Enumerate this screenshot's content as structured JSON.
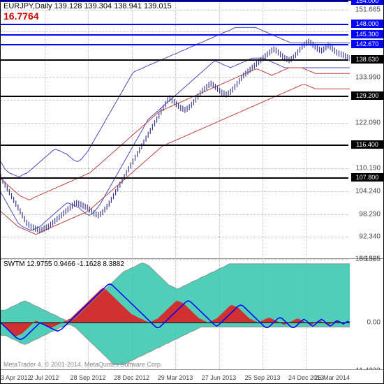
{
  "header": {
    "symbol": "EURJPY,Daily",
    "ohlc": "139.128 139.304 138.941 139.015",
    "value": "16.7764"
  },
  "indicator": {
    "name": "SWTM",
    "values": "12.9755 0.9466 -1.1628 8.3882"
  },
  "copyright": "MetaTrader 4, © 2001-2014, MetaQuotes Software Corp.",
  "price_chart": {
    "ylim": [
      86.565,
      154.0
    ],
    "yticks": [
      86.565,
      92.34,
      98.29,
      104.24,
      110.19,
      116.4,
      122.09,
      128.04,
      133.99,
      138.765,
      145.89,
      151.665
    ],
    "yticklabels": [
      "86.565",
      "92.340",
      "98.290",
      "104.240",
      "110.190",
      "",
      "122.090",
      "",
      "133.990",
      "",
      "",
      "151.665"
    ],
    "horizontal_lines": [
      {
        "value": 154.0,
        "color": "blue",
        "label": "154.000"
      },
      {
        "value": 148.0,
        "color": "blue",
        "label": "148.000"
      },
      {
        "value": 145.3,
        "color": "blue",
        "label": "145.300"
      },
      {
        "value": 142.67,
        "color": "blue",
        "label": "142.670"
      },
      {
        "value": 138.63,
        "color": "black",
        "label": "138.630"
      },
      {
        "value": 129.2,
        "color": "black",
        "label": "129.200"
      },
      {
        "value": 116.4,
        "color": "black",
        "label": "116.400"
      },
      {
        "value": 107.8,
        "color": "black",
        "label": "107.800"
      }
    ],
    "price_series": [
      108,
      107,
      106,
      105,
      104,
      103,
      102,
      101,
      100,
      99,
      98,
      97,
      96,
      95.5,
      95,
      94.8,
      94.5,
      94.3,
      94,
      94.2,
      94.5,
      94.8,
      95,
      95.5,
      96,
      96.5,
      97,
      97.5,
      98,
      98.5,
      99,
      99.5,
      100,
      100.5,
      101,
      101.2,
      101,
      100.8,
      100.5,
      100.2,
      100,
      99.5,
      99,
      98.5,
      98.2,
      98,
      98.3,
      98.8,
      99.5,
      100.2,
      101,
      102,
      103,
      104,
      105,
      106,
      107,
      108,
      109,
      110,
      111,
      112,
      113,
      114,
      115,
      116,
      117,
      118,
      119,
      120,
      121,
      122,
      123,
      124,
      125,
      126,
      127,
      128,
      128.5,
      128,
      127.5,
      127,
      126.5,
      126,
      125.8,
      125.5,
      125.8,
      126.2,
      126.8,
      127.5,
      128.2,
      129,
      129.8,
      130.5,
      131,
      131.5,
      132,
      132.3,
      132,
      131.5,
      131,
      130.5,
      130,
      129.8,
      129.5,
      129.8,
      130.2,
      130.8,
      131.5,
      132.2,
      133,
      133.8,
      134.5,
      135,
      135.5,
      136,
      136.5,
      137,
      137.5,
      138,
      138.5,
      139,
      139.5,
      140,
      140.5,
      141,
      141.3,
      141,
      140.5,
      140,
      139.5,
      139,
      138.8,
      138.5,
      138.8,
      139.2,
      139.8,
      140.5,
      141.2,
      142,
      142.5,
      143,
      143.3,
      143,
      142.5,
      142,
      141.5,
      141.2,
      141,
      141.3,
      141.8,
      142.3,
      142,
      141.5,
      141,
      140.5,
      140.2,
      140,
      139.8,
      139.5,
      139.2,
      139
    ],
    "channel_upper": [
      112,
      111,
      110,
      109.5,
      109,
      108.8,
      108.5,
      108.3,
      108,
      108.2,
      108.5,
      108.8,
      109,
      109.5,
      110,
      110.5,
      111,
      111.5,
      112,
      112.5,
      113,
      113.5,
      114,
      114.5,
      115,
      115.2,
      115,
      114.8,
      114.5,
      114.2,
      114,
      113.5,
      113,
      112.5,
      112.2,
      112,
      112.3,
      112.8,
      113.5,
      114.2,
      115,
      116,
      117,
      118,
      119,
      120,
      121,
      122,
      123,
      124,
      125,
      126,
      127,
      128,
      129,
      130,
      131,
      132,
      133,
      134,
      135,
      135.5,
      135.8,
      136,
      136.2,
      136.5,
      136.8,
      137,
      137.3,
      137.5,
      137.8,
      138,
      138.3,
      138.5,
      138.8,
      139,
      139.3,
      139.5,
      139.8,
      140,
      140.2,
      140.5,
      140.8,
      141,
      141.2,
      141.5,
      141.8,
      142,
      142.2,
      142.5,
      142.8,
      143,
      143.2,
      143.5,
      143.8,
      144,
      144.2,
      144.5,
      144.8,
      145,
      145.2,
      145.5,
      145.8,
      146,
      146.2,
      146.5,
      146.8,
      147,
      147,
      147,
      147,
      147,
      147,
      147,
      147,
      147,
      147,
      146.8,
      146.5,
      146.3,
      146,
      145.8,
      145.5,
      145.3,
      145,
      144.8,
      144.5,
      144.3,
      144,
      143.8,
      143.5,
      143.3,
      143,
      143,
      143,
      143,
      143,
      143,
      143,
      143,
      143,
      143,
      143,
      143,
      143,
      143,
      143,
      143,
      143,
      143,
      143,
      143,
      143,
      143,
      143,
      143,
      143,
      143,
      143,
      143
    ],
    "channel_lower": [
      104,
      103,
      102,
      101,
      100,
      99,
      98,
      97,
      96,
      95.5,
      95,
      94.8,
      94.5,
      94.3,
      94,
      94.2,
      94.5,
      94.8,
      95,
      95.5,
      96,
      96.5,
      97,
      97.5,
      98,
      98.5,
      99,
      99.5,
      100,
      100.5,
      101,
      101.2,
      101,
      100.8,
      100.5,
      100.2,
      100,
      99.5,
      99,
      98.5,
      98.2,
      98,
      98.3,
      98.8,
      99.5,
      100.2,
      101,
      102,
      103,
      104,
      105,
      106,
      107,
      108,
      109,
      110,
      111,
      112,
      113,
      114,
      115,
      116,
      117,
      118,
      119,
      120,
      121,
      122,
      123,
      123.5,
      124,
      124.5,
      125,
      125.5,
      126,
      126.5,
      127,
      127.5,
      128,
      128.5,
      129,
      129.5,
      130,
      130.5,
      131,
      131.5,
      132,
      132.5,
      133,
      133.5,
      134,
      134.5,
      135,
      135.5,
      136,
      136.5,
      137,
      137.5,
      138,
      138.2,
      138,
      137.8,
      137.5,
      137.2,
      137,
      136.8,
      136.5,
      136.8,
      137,
      137.3,
      137.5,
      137.8,
      138,
      138.2,
      138.5,
      138.8,
      139,
      139,
      139,
      139,
      139,
      139,
      138.8,
      138.5,
      138.3,
      138,
      137.8,
      137.5,
      137.3,
      137,
      136.8,
      136.5,
      136.5,
      136.5,
      136.5,
      136.5,
      136.5,
      136.5,
      136.5,
      136.5,
      136.5,
      136.5,
      136.5,
      136.5,
      136.5,
      136.5,
      136.5,
      136.5,
      136.5,
      136.5,
      136.5,
      136.5,
      136.5,
      136.5,
      136.5,
      136.5,
      136.5,
      136.5,
      136.5,
      136.5,
      136.5,
      136.5
    ],
    "ma_red_upper": [
      107.5,
      107,
      106.5,
      106,
      105.5,
      105,
      104.5,
      104,
      103.5,
      103,
      102.8,
      102.5,
      102.3,
      102,
      102.2,
      102.5,
      102.8,
      103,
      103.3,
      103.5,
      103.8,
      104,
      104.3,
      104.5,
      104.8,
      105,
      105.3,
      105.5,
      105.8,
      106,
      106.3,
      106.5,
      106.8,
      107,
      107.3,
      107.5,
      107.8,
      108,
      108.3,
      108.5,
      108.8,
      109,
      109.5,
      110,
      110.5,
      111,
      111.5,
      112,
      112.5,
      113,
      113.5,
      114,
      114.5,
      115,
      115.5,
      116,
      116.5,
      117,
      117.5,
      118,
      118.5,
      119,
      119.5,
      120,
      120.5,
      121,
      121.5,
      122,
      122.5,
      123,
      123.5,
      124,
      124.5,
      125,
      125.3,
      125.5,
      125.8,
      126,
      126.3,
      126.5,
      126.8,
      127,
      127.3,
      127.5,
      127.8,
      128,
      128.3,
      128.5,
      128.8,
      129,
      129.3,
      129.5,
      129.8,
      130,
      130.3,
      130.5,
      130.8,
      131,
      131.3,
      131.5,
      131.8,
      132,
      132.3,
      132.5,
      132.8,
      133,
      133.3,
      133.5,
      133.8,
      134,
      134.3,
      134.5,
      134.8,
      135,
      135.3,
      135.5,
      135.8,
      136,
      136.2,
      136,
      135.8,
      135.5,
      135.3,
      135,
      134.8,
      134.5,
      134.8,
      135,
      135.2,
      135.5,
      135.8,
      136,
      136.2,
      136.5,
      136.5,
      136.5,
      136.5,
      136.5,
      136.5,
      136.5,
      136.2,
      136,
      135.8,
      135.5,
      135.3,
      135,
      135,
      135,
      135,
      135,
      135,
      135,
      135,
      135,
      135,
      135,
      135,
      135,
      135,
      135,
      135,
      135
    ],
    "ma_red_lower": [
      99,
      98.5,
      98,
      97.5,
      97,
      96.5,
      96,
      95.5,
      95,
      94.8,
      94.5,
      94.3,
      94,
      93.8,
      93.5,
      93.3,
      93,
      93.2,
      93.5,
      93.8,
      94,
      94.3,
      94.5,
      94.8,
      95,
      95.3,
      95.5,
      95.8,
      96,
      96.3,
      96.5,
      96.8,
      97,
      97.3,
      97.5,
      97.8,
      98,
      98.3,
      98.5,
      98.8,
      99,
      99.5,
      100,
      100.5,
      101,
      101.5,
      102,
      102.5,
      103,
      103.5,
      104,
      104.5,
      105,
      105.5,
      106,
      106.5,
      107,
      107.5,
      108,
      108.5,
      109,
      109.5,
      110,
      110.5,
      111,
      111.5,
      112,
      112.5,
      113,
      113.5,
      114,
      114.5,
      115,
      115.5,
      116,
      116.3,
      116.5,
      116.8,
      117,
      117.3,
      117.5,
      117.8,
      118,
      118.3,
      118.5,
      118.8,
      119,
      119.3,
      119.5,
      119.8,
      120,
      120.3,
      120.5,
      120.8,
      121,
      121.3,
      121.5,
      121.8,
      122,
      122.3,
      122.5,
      122.8,
      123,
      123.3,
      123.5,
      123.8,
      124,
      124.3,
      124.5,
      124.8,
      125,
      125.3,
      125.5,
      125.8,
      126,
      126.3,
      126.5,
      126.8,
      127,
      127.3,
      127.5,
      127.8,
      128,
      128.3,
      128.5,
      128.8,
      129,
      129.3,
      129.5,
      129.8,
      130,
      130.3,
      130.5,
      130.8,
      131,
      131.3,
      131.5,
      131.8,
      132,
      132.2,
      132,
      131.8,
      131.5,
      131.3,
      131,
      131,
      131,
      131,
      131,
      131,
      131,
      131,
      131,
      131,
      131,
      131,
      131,
      131,
      131,
      131,
      131
    ],
    "colors": {
      "price": "#3a3a8a",
      "channel": "#4a4ac0",
      "ma_red": "#c04040",
      "grid": "#cccccc",
      "hline_black": "#000000",
      "hline_blue": "#0000ff"
    }
  },
  "indicator_chart": {
    "ylim": [
      -11.4222,
      15.1325
    ],
    "yticks": [
      -11.4222,
      0.0,
      15.1325
    ],
    "yticklabels": [
      "-11.4222",
      "0.00",
      "15.1325"
    ],
    "green_upper": [
      3,
      3,
      3,
      3.2,
      3.5,
      3.8,
      4,
      4.2,
      4.5,
      4.8,
      5,
      5.2,
      5,
      4.8,
      4.5,
      4.2,
      4,
      3.8,
      3.5,
      3.2,
      3,
      2.8,
      2.5,
      2.2,
      2,
      1.8,
      1.5,
      1.2,
      1,
      0.8,
      0.5,
      0.5,
      0.5,
      0.8,
      1,
      1.5,
      2,
      2.5,
      3,
      3.5,
      4,
      4.5,
      5,
      5.5,
      6,
      6.5,
      7,
      7.5,
      8,
      8.5,
      9,
      9.5,
      10,
      10.5,
      11,
      11.5,
      12,
      12.3,
      12.5,
      12.8,
      13,
      13.2,
      13.5,
      13.8,
      14,
      14.2,
      14,
      13.8,
      13.5,
      13,
      12.5,
      12,
      11.5,
      11,
      10.5,
      10,
      9.5,
      9,
      8.8,
      8.5,
      8.3,
      8,
      8.2,
      8.5,
      8.8,
      9,
      9.2,
      9.5,
      9.8,
      10,
      10.2,
      10.5,
      10.8,
      11,
      11.2,
      11.5,
      11.8,
      12,
      12.2,
      12.5,
      12.8,
      13,
      13.2,
      13.5,
      13.8,
      14,
      14,
      14,
      14,
      14,
      14,
      14,
      14,
      14,
      14,
      14,
      14,
      14,
      14,
      14,
      14,
      14,
      14,
      14,
      14,
      14,
      14,
      14,
      14,
      14,
      14,
      14,
      14,
      14,
      14,
      14,
      14,
      14,
      14,
      14,
      14,
      14,
      14,
      14,
      14,
      14,
      14,
      14,
      14,
      14,
      14,
      14,
      14,
      14,
      14,
      14,
      14,
      14,
      14,
      14,
      14
    ],
    "green_lower": [
      -3,
      -3,
      -3,
      -3.2,
      -3.5,
      -3.8,
      -4,
      -4.2,
      -4.5,
      -4.8,
      -5,
      -5.2,
      -5,
      -4.8,
      -4.5,
      -4.2,
      -4,
      -3.8,
      -3.5,
      -3.2,
      -3,
      -2.8,
      -2.5,
      -2.2,
      -2,
      -1.8,
      -1.5,
      -1.2,
      -1,
      -0.8,
      -0.5,
      -0.5,
      -0.5,
      -0.8,
      -1,
      -1.5,
      -2,
      -2.5,
      -3,
      -3.5,
      -4,
      -4.5,
      -5,
      -5.5,
      -6,
      -6.5,
      -7,
      -7.5,
      -8,
      -8.5,
      -9,
      -9.5,
      -10,
      -10,
      -10,
      -10,
      -10,
      -9.8,
      -9.5,
      -9.2,
      -9,
      -8.8,
      -8.5,
      -8.2,
      -8,
      -7.8,
      -7.5,
      -7.2,
      -7,
      -6.8,
      -6.5,
      -6.2,
      -6,
      -5.8,
      -5.5,
      -5.2,
      -5,
      -4.8,
      -4.5,
      -4.2,
      -4,
      -3.8,
      -3.5,
      -3.2,
      -3,
      -2.8,
      -2.5,
      -2.2,
      -2,
      -1.8,
      -1.5,
      -1.2,
      -1,
      -1,
      -1,
      -1,
      -1,
      -1,
      -1,
      -1,
      -1,
      -1,
      -1,
      -1,
      -1,
      -1,
      -1,
      -1,
      -1,
      -1,
      -1,
      -1,
      -1,
      -1,
      -1,
      -1,
      -1,
      -1,
      -1,
      -1,
      -1,
      -1,
      -1,
      -1,
      -1,
      -1,
      -1,
      -1,
      -1,
      -1,
      -1,
      -1,
      -1,
      -1,
      -1,
      -1,
      -1,
      -1,
      -1,
      -1,
      -1,
      -1,
      -1,
      -1,
      -1,
      -1,
      -1,
      -1,
      -1,
      -1,
      -1,
      -1,
      -1,
      -1,
      -1,
      -1,
      -1,
      -1,
      -1,
      -1,
      -1
    ],
    "red_series": [
      0,
      -0.5,
      -1,
      -1.5,
      -2,
      -2.5,
      -3,
      -3.2,
      -3,
      -2.8,
      -2.5,
      -2,
      -1.5,
      -1,
      -0.5,
      0,
      0.5,
      0.3,
      0,
      -0.3,
      -0.5,
      -0.8,
      -1,
      -1.2,
      -1,
      -0.8,
      -0.5,
      -0.3,
      0,
      0.3,
      0.5,
      0.8,
      1,
      1.5,
      2,
      2.5,
      3,
      3.5,
      4,
      4.5,
      5,
      5.5,
      6,
      6.5,
      7,
      7.5,
      8,
      8.3,
      8,
      7.5,
      7,
      6.5,
      6,
      5.5,
      5,
      4.5,
      4,
      3.5,
      3,
      2.5,
      2,
      1.8,
      1.5,
      1.2,
      1,
      0.8,
      0.5,
      0.3,
      0,
      0.3,
      0.5,
      0.8,
      1,
      1.5,
      2,
      2.5,
      3,
      3.5,
      4,
      4.5,
      5,
      5.2,
      5,
      4.8,
      4.5,
      4,
      3.5,
      3,
      2.5,
      2,
      1.5,
      1,
      0.8,
      0.5,
      0.3,
      0,
      0.3,
      0.5,
      0.8,
      1,
      1.5,
      2,
      2.5,
      3,
      3.5,
      4,
      4.2,
      4,
      3.8,
      3.5,
      3,
      2.5,
      2,
      1.5,
      1,
      0.8,
      0.5,
      0.3,
      0,
      0.3,
      0.5,
      0.8,
      1,
      1.2,
      1,
      0.8,
      0.5,
      0.3,
      0,
      -0.3,
      -0.5,
      -0.3,
      0,
      0.3,
      0.5,
      0.8,
      1,
      0.8,
      0.5,
      0.3,
      0,
      -0.3,
      -0.5,
      -0.3,
      0,
      0.3,
      0.5,
      0.3,
      0,
      -0.3,
      -0.5,
      -0.3,
      0,
      0.3,
      0.5,
      0.3,
      0,
      -0.3,
      0,
      0.3,
      0
    ],
    "blue_series": [
      0,
      -0.5,
      -1,
      -1.5,
      -2,
      -2.5,
      -3,
      -3.5,
      -3.8,
      -4,
      -3.8,
      -3.5,
      -3,
      -2.5,
      -2,
      -1.5,
      -1,
      -0.5,
      0,
      -0.3,
      -0.5,
      -0.8,
      -1,
      -1.3,
      -1.5,
      -1.8,
      -2,
      -1.8,
      -1.5,
      -1,
      -0.5,
      0,
      0.5,
      1,
      1.5,
      2,
      2.5,
      3,
      3.5,
      4,
      4.5,
      5,
      5.5,
      6,
      6.5,
      7,
      7.5,
      8,
      8.5,
      9,
      9.2,
      9,
      8.5,
      8,
      7.5,
      7,
      6.5,
      6,
      5.5,
      5,
      4.5,
      4,
      3.5,
      3,
      2.5,
      2,
      1.5,
      1,
      0.5,
      0,
      -0.5,
      -1,
      -1.2,
      -1,
      -0.5,
      0,
      0.5,
      1,
      1.5,
      2,
      2.5,
      3,
      3.5,
      4,
      4.5,
      5,
      5.2,
      5,
      4.5,
      4,
      3.5,
      3,
      2.5,
      2,
      1.5,
      1,
      0.5,
      0,
      -0.5,
      -0.8,
      -0.5,
      0,
      0.5,
      1,
      1.5,
      2,
      2.5,
      3,
      3.5,
      4,
      4.2,
      4,
      3.5,
      3,
      2.5,
      2,
      1.5,
      1,
      0.5,
      0,
      -0.5,
      -1,
      -1.2,
      -1,
      -0.5,
      0,
      0.5,
      1,
      1.2,
      1,
      0.5,
      0,
      -0.5,
      -1,
      -1.2,
      -1,
      -0.5,
      0,
      0.5,
      0.8,
      0.5,
      0,
      -0.5,
      -0.8,
      -0.5,
      0,
      0.5,
      0.8,
      0.5,
      0,
      -0.5,
      -0.8,
      -0.5,
      0,
      0.5,
      0.3,
      0,
      -0.3,
      0,
      0.3,
      0
    ],
    "colors": {
      "green_fill": "#3dc9b0",
      "red_fill": "#d03030",
      "blue_line": "#0000ff",
      "zero_line": "#000000"
    }
  },
  "x_axis": {
    "labels": [
      "3 Apr 2012",
      "2 Jul 2012",
      "28 Sep 2012",
      "28 Dec 2012",
      "29 Mar 2013",
      "27 Jun 2013",
      "25 Sep 2013",
      "24 Dec 2013",
      "26 Mar 2014"
    ],
    "positions": [
      0,
      0.125,
      0.25,
      0.375,
      0.5,
      0.625,
      0.75,
      0.875,
      1.0
    ]
  }
}
